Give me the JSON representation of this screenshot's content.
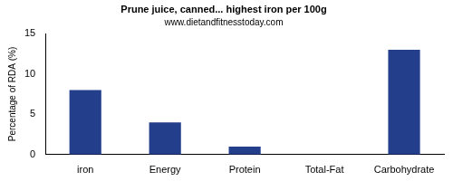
{
  "chart_data": {
    "type": "bar",
    "title": "Prune juice, canned... highest iron per 100g",
    "subtitle": "www.dietandfitnesstoday.com",
    "y_label": "Percentage of RDA (%)",
    "categories": [
      "iron",
      "Energy",
      "Protein",
      "Total-Fat",
      "Carbohydrate"
    ],
    "values": [
      8,
      4,
      1,
      0,
      13
    ],
    "color": "#233e8b",
    "ylim": [
      0,
      15
    ],
    "yticks": [
      0,
      5,
      10,
      15
    ],
    "grid": false
  }
}
